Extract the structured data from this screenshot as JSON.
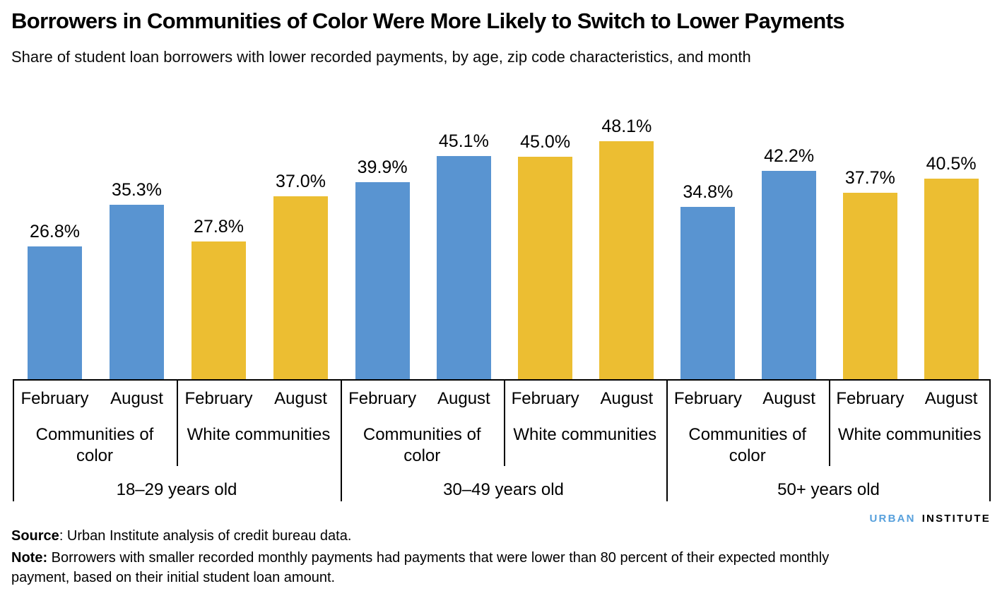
{
  "title": "Borrowers in Communities of Color Were More Likely to Switch to Lower Payments",
  "subtitle": "Share of student loan borrowers with lower recorded payments, by age, zip code characteristics, and month",
  "logo": {
    "urban": "URBAN",
    "institute": "INSTITUTE"
  },
  "footer": {
    "source_label": "Source",
    "source_text": ": Urban Institute analysis of credit bureau data.",
    "note_label": "Note:",
    "note_text": " Borrowers with smaller recorded monthly payments had payments that were lower than 80 percent of their expected monthly payment, based on their initial student loan amount."
  },
  "colors": {
    "communities_of_color": "#5994D1",
    "white_communities": "#ECBE32",
    "logo_blue": "#57A0DC",
    "axis_line": "#000000"
  },
  "chart_data": {
    "type": "bar",
    "unit": "percent",
    "value_suffix": "%",
    "ylim": [
      0,
      50
    ],
    "grid": false,
    "legend": "none",
    "x_axis_levels": [
      "month",
      "community type",
      "age group"
    ],
    "groups": [
      {
        "age": "18–29 years old",
        "subgroups": [
          {
            "label": "Communities of color",
            "color_key": "communities_of_color",
            "bars": [
              {
                "month": "February",
                "value": 26.8,
                "label": "26.8%"
              },
              {
                "month": "August",
                "value": 35.3,
                "label": "35.3%"
              }
            ]
          },
          {
            "label": "White communities",
            "color_key": "white_communities",
            "bars": [
              {
                "month": "February",
                "value": 27.8,
                "label": "27.8%"
              },
              {
                "month": "August",
                "value": 37.0,
                "label": "37.0%"
              }
            ]
          }
        ]
      },
      {
        "age": "30–49 years old",
        "subgroups": [
          {
            "label": "Communities of color",
            "color_key": "communities_of_color",
            "bars": [
              {
                "month": "February",
                "value": 39.9,
                "label": "39.9%"
              },
              {
                "month": "August",
                "value": 45.1,
                "label": "45.1%"
              }
            ]
          },
          {
            "label": "White communities",
            "color_key": "white_communities",
            "bars": [
              {
                "month": "February",
                "value": 45.0,
                "label": "45.0%"
              },
              {
                "month": "August",
                "value": 48.1,
                "label": "48.1%"
              }
            ]
          }
        ]
      },
      {
        "age": "50+ years old",
        "subgroups": [
          {
            "label": "Communities of color",
            "color_key": "communities_of_color",
            "bars": [
              {
                "month": "February",
                "value": 34.8,
                "label": "34.8%"
              },
              {
                "month": "August",
                "value": 42.2,
                "label": "42.2%"
              }
            ]
          },
          {
            "label": "White communities",
            "color_key": "white_communities",
            "bars": [
              {
                "month": "February",
                "value": 37.7,
                "label": "37.7%"
              },
              {
                "month": "August",
                "value": 40.5,
                "label": "40.5%"
              }
            ]
          }
        ]
      }
    ]
  }
}
